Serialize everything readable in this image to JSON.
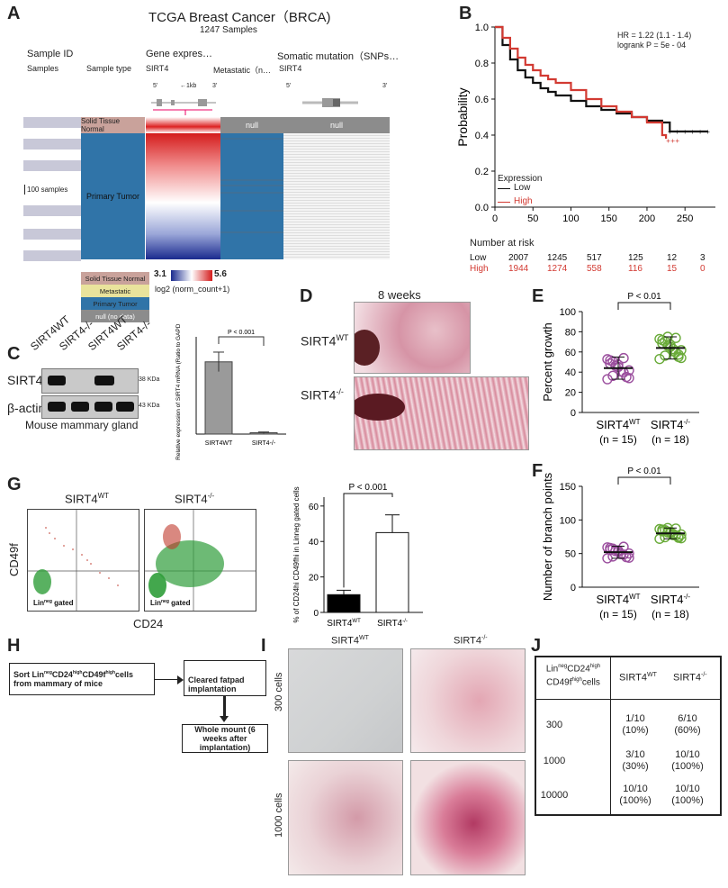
{
  "panels": [
    "A",
    "B",
    "C",
    "D",
    "E",
    "F",
    "G",
    "H",
    "I",
    "J"
  ],
  "panelA": {
    "title": "TCGA Breast Cancer（BRCA)",
    "subtitle": "1247 Samples",
    "col_sample_id": "Sample ID",
    "col_gene_expr": "Gene expres…",
    "col_somatic": "Somatic mutation（SNPs…",
    "row_samples": "Samples",
    "row_sample_type": "Sample type",
    "row_sirt4": "SIRT4",
    "row_metastatic": "Metastatic（n…",
    "row_sirt4_b": "SIRT4",
    "five_prime": "5'",
    "three_prime": "3'",
    "scale": "←1kb",
    "solid_tissue_normal": "Solid Tissue Normal",
    "primary_tumor": "Primary Tumor",
    "null": "null",
    "hundred_samples": "100 samples",
    "legend": [
      "Solid Tissue Normal",
      "Metastatic",
      "Primary Tumor",
      "null (no data)"
    ],
    "scale_min": "3.1",
    "scale_max": "5.6",
    "scale_label": "log2 (norm_count+1)",
    "colors": {
      "normal": "#c9a29b",
      "metastatic": "#e9e39c",
      "primary": "#3074a8",
      "null": "#8c8c8c"
    }
  },
  "panelB": {
    "hr": "HR = 1.22 (1.1 - 1.4)",
    "logrank": "logrank P = 5e - 04",
    "ylabel": "Probability",
    "legend_title": "Expression",
    "legend_low": "Low",
    "legend_high": "High",
    "risk_title": "Number at risk",
    "risk_low": [
      "Low",
      "2007",
      "1245",
      "517",
      "125",
      "12",
      "3"
    ],
    "risk_high": [
      "High",
      "1944",
      "1274",
      "558",
      "116",
      "15",
      "0"
    ],
    "colors": {
      "low": "#111111",
      "high": "#d23a32"
    }
  },
  "chart_data": [
    {
      "type": "line",
      "title": "Kaplan-Meier survival",
      "xlabel": "",
      "ylabel": "Probability",
      "x_ticks": [
        "0",
        "50",
        "100",
        "150",
        "200",
        "250"
      ],
      "y_ticks": [
        "0.0",
        "0.2",
        "0.4",
        "0.6",
        "0.8",
        "1.0"
      ],
      "xlim": [
        0,
        290
      ],
      "ylim": [
        0,
        1.0
      ],
      "series": [
        {
          "name": "Low",
          "x": [
            0,
            10,
            20,
            30,
            40,
            50,
            60,
            70,
            80,
            100,
            120,
            140,
            160,
            180,
            200,
            220,
            230,
            240,
            260,
            280
          ],
          "y": [
            1.0,
            0.9,
            0.82,
            0.76,
            0.72,
            0.69,
            0.66,
            0.64,
            0.62,
            0.59,
            0.56,
            0.54,
            0.52,
            0.5,
            0.48,
            0.47,
            0.42,
            0.42,
            0.42,
            0.42
          ]
        },
        {
          "name": "High",
          "x": [
            0,
            10,
            20,
            30,
            40,
            50,
            60,
            70,
            80,
            100,
            120,
            140,
            160,
            180,
            200,
            220,
            225
          ],
          "y": [
            1.0,
            0.94,
            0.88,
            0.83,
            0.79,
            0.76,
            0.73,
            0.71,
            0.69,
            0.65,
            0.6,
            0.56,
            0.53,
            0.5,
            0.47,
            0.4,
            0.38
          ]
        }
      ]
    },
    {
      "type": "bar",
      "title": "Relative expression of SIRT4 mRNA",
      "ylabel": "Relative expression of SIRT4 mRNA (Ratio to GAPDH %)",
      "categories": [
        "SIRT4WT",
        "SIRT4-/-"
      ],
      "values": [
        5.2,
        0.1
      ],
      "errors": [
        0.7,
        0.05
      ],
      "ylim": [
        0,
        7
      ],
      "pvalue": "P < 0.001"
    },
    {
      "type": "scatter",
      "title": "Percent growth",
      "ylabel": "Percent growth",
      "y_ticks": [
        "0",
        "20",
        "40",
        "60",
        "80",
        "100"
      ],
      "ylim": [
        0,
        100
      ],
      "categories": [
        "SIRT4WT",
        "SIRT4-/-"
      ],
      "n_labels": [
        "(n = 15)",
        "(n = 18)"
      ],
      "means": [
        44,
        64
      ],
      "sd": [
        11,
        11
      ],
      "pvalue": "P < 0.01",
      "colors": [
        "#9b4f9e",
        "#6aab3a"
      ]
    },
    {
      "type": "scatter",
      "title": "Number of branch points",
      "ylabel": "Number of branch points",
      "y_ticks": [
        "0",
        "50",
        "100",
        "150"
      ],
      "ylim": [
        0,
        150
      ],
      "categories": [
        "SIRT4WT",
        "SIRT4-/-"
      ],
      "n_labels": [
        "(n = 15)",
        "(n = 18)"
      ],
      "means": [
        52,
        80
      ],
      "sd": [
        9,
        8
      ],
      "pvalue": "P < 0.01",
      "colors": [
        "#9b4f9e",
        "#6aab3a"
      ]
    },
    {
      "type": "bar",
      "title": "% of CD24hi CD49fhi in Linneg gated cells",
      "ylabel": "% of CD24hi CD49fhi in Linneg gated cells",
      "y_ticks": [
        "0",
        "20",
        "40",
        "60"
      ],
      "ylim": [
        0,
        65
      ],
      "categories": [
        "SIRT4WT",
        "SIRT4-/-"
      ],
      "values": [
        10,
        45
      ],
      "errors": [
        2.5,
        10
      ],
      "pvalue": "P < 0.001",
      "colors": [
        "#000000",
        "#ffffff"
      ]
    }
  ],
  "panelC": {
    "lanes": [
      "SIRT4WT",
      "SIRT4-/-",
      "SIRT4WT",
      "SIRT4-/-"
    ],
    "band1": "SIRT4",
    "band2": "β-actin",
    "kda1": "38 KDa",
    "kda2": "43 KDa",
    "caption": "Mouse mammary gland"
  },
  "panelD": {
    "title": "8 weeks",
    "wt": "SIRT4",
    "ko": "SIRT4"
  },
  "panelG": {
    "wt": "SIRT4",
    "ko": "SIRT4",
    "ylabel": "CD49f",
    "xlabel": "CD24",
    "gated": "Lin",
    "gated_sup": "neg",
    "gated_rest": "gated"
  },
  "panelH": {
    "step1": "Sort LinnegCD24highCD49fhighcells from mammary of mice",
    "step2": "Cleared fatpad implantation",
    "step3": "Whole mount (6 weeks after implantation)"
  },
  "panelI": {
    "wt": "SIRT4",
    "ko": "SIRT4",
    "row1": "300 cells",
    "row2": "1000 cells"
  },
  "panelJ": {
    "header_col1": "LinnegCD24high CD49fhighcells",
    "header_wt": "SIRT4WT",
    "header_ko": "SIRT4-/-",
    "rows": [
      {
        "n": "300",
        "wt": "1/10",
        "wt_pct": "(10%)",
        "ko": "6/10",
        "ko_pct": "(60%)"
      },
      {
        "n": "1000",
        "wt": "3/10",
        "wt_pct": "(30%)",
        "ko": "10/10",
        "ko_pct": "(100%)"
      },
      {
        "n": "10000",
        "wt": "10/10",
        "wt_pct": "(100%)",
        "ko": "10/10",
        "ko_pct": "(100%)"
      }
    ]
  }
}
